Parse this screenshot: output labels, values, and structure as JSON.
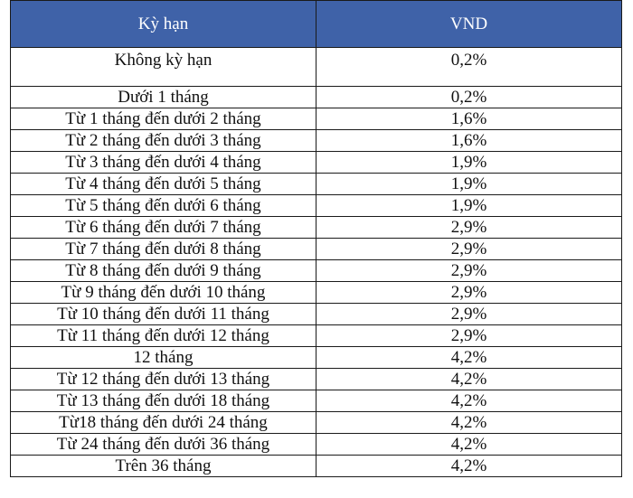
{
  "table": {
    "header": {
      "term": "Kỳ hạn",
      "currency": "VND"
    },
    "header_color": "#3f62a8",
    "rows": [
      {
        "term": "Không kỳ hạn",
        "rate": "0,2%"
      },
      {
        "term": "Dưới 1 tháng",
        "rate": "0,2%"
      },
      {
        "term": "Từ 1 tháng đến dưới 2 tháng",
        "rate": "1,6%"
      },
      {
        "term": "Từ 2 tháng đến dưới 3 tháng",
        "rate": "1,6%"
      },
      {
        "term": "Từ 3 tháng đến dưới 4 tháng",
        "rate": "1,9%"
      },
      {
        "term": "Từ 4 tháng đến dưới 5 tháng",
        "rate": "1,9%"
      },
      {
        "term": "Từ 5 tháng đến dưới 6 tháng",
        "rate": "1,9%"
      },
      {
        "term": "Từ 6 tháng đến dưới 7 tháng",
        "rate": "2,9%"
      },
      {
        "term": "Từ 7 tháng đến dưới 8 tháng",
        "rate": "2,9%"
      },
      {
        "term": "Từ 8 tháng đến dưới 9 tháng",
        "rate": "2,9%"
      },
      {
        "term": "Từ 9 tháng đến dưới 10 tháng",
        "rate": "2,9%"
      },
      {
        "term": "Từ 10 tháng đến dưới 11 tháng",
        "rate": "2,9%"
      },
      {
        "term": "Từ 11 tháng đến dưới 12 tháng",
        "rate": "2,9%"
      },
      {
        "term": "12 tháng",
        "rate": "4,2%"
      },
      {
        "term": "Từ 12 tháng đến dưới 13 tháng",
        "rate": "4,2%"
      },
      {
        "term": "Từ 13 tháng đến dưới 18 tháng",
        "rate": "4,2%"
      },
      {
        "term": "Từ18 tháng đến dưới 24 tháng",
        "rate": "4,2%"
      },
      {
        "term": "Từ 24 tháng đến dưới 36 tháng",
        "rate": "4,2%"
      },
      {
        "term": "Trên 36 tháng",
        "rate": "4,2%"
      }
    ]
  }
}
